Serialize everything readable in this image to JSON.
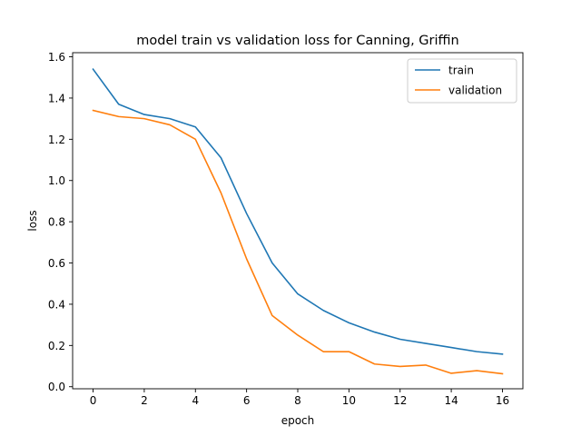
{
  "chart_data": {
    "type": "line",
    "title": "model train vs validation loss for Canning, Griffin",
    "xlabel": "epoch",
    "ylabel": "loss",
    "xlim": [
      -0.8,
      16.8
    ],
    "ylim": [
      -0.01,
      1.62
    ],
    "xticks": [
      0,
      2,
      4,
      6,
      8,
      10,
      12,
      14,
      16
    ],
    "yticks": [
      0.0,
      0.2,
      0.4,
      0.6,
      0.8,
      1.0,
      1.2,
      1.4,
      1.6
    ],
    "grid": false,
    "legend_position": "upper right",
    "x": [
      0,
      1,
      2,
      3,
      4,
      5,
      6,
      7,
      8,
      9,
      10,
      11,
      12,
      13,
      14,
      15,
      16
    ],
    "series": [
      {
        "name": "train",
        "color": "#1f77b4",
        "values": [
          1.54,
          1.37,
          1.32,
          1.3,
          1.26,
          1.11,
          0.84,
          0.6,
          0.45,
          0.37,
          0.31,
          0.265,
          0.23,
          0.21,
          0.19,
          0.17,
          0.158
        ]
      },
      {
        "name": "validation",
        "color": "#ff7f0e",
        "values": [
          1.34,
          1.31,
          1.3,
          1.27,
          1.2,
          0.94,
          0.62,
          0.345,
          0.25,
          0.17,
          0.17,
          0.11,
          0.098,
          0.105,
          0.065,
          0.078,
          0.063
        ]
      }
    ]
  }
}
